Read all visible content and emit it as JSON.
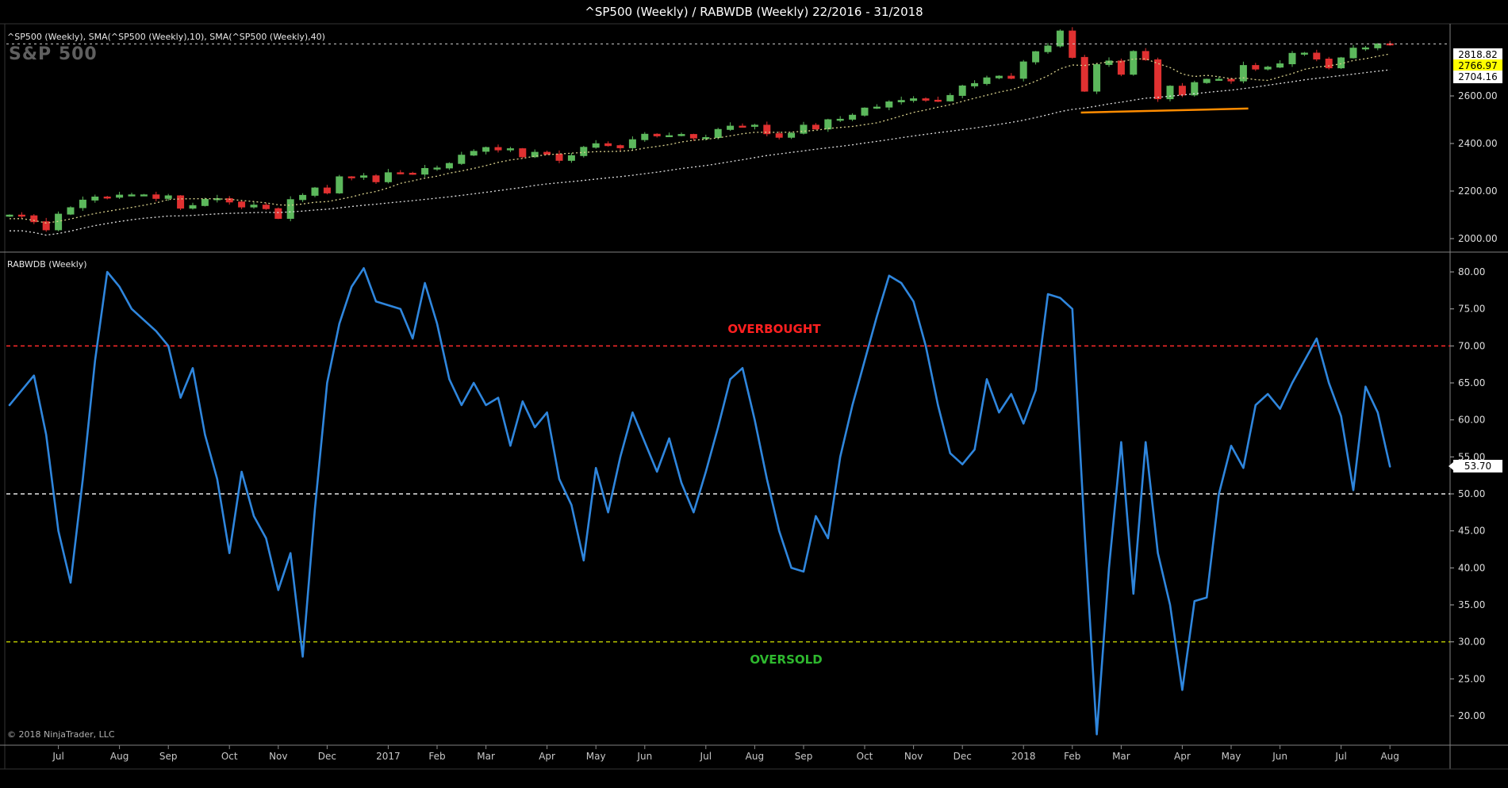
{
  "title": "^SP500 (Weekly) / RABWDB (Weekly)  22/2016 - 31/2018",
  "price_panel": {
    "label": "^SP500 (Weekly), SMA(^SP500 (Weekly),10), SMA(^SP500 (Weekly),40)",
    "watermark": "S&P 500"
  },
  "indicator_panel": {
    "label": "RABWDB (Weekly)",
    "overbought_text": "OVERBOUGHT",
    "oversold_text": "OVERSOLD"
  },
  "markers": {
    "last": "2818.82",
    "sma10": "2766.97",
    "sma40": "2704.16",
    "osc": "53.70"
  },
  "footer": {
    "copyright": "© 2018 NinjaTrader, LLC"
  },
  "x_axis": {
    "labels": [
      {
        "t": "Jul",
        "i": 4
      },
      {
        "t": "Aug",
        "i": 9
      },
      {
        "t": "Sep",
        "i": 13
      },
      {
        "t": "Oct",
        "i": 18
      },
      {
        "t": "Nov",
        "i": 22
      },
      {
        "t": "Dec",
        "i": 26
      },
      {
        "t": "2017",
        "i": 31
      },
      {
        "t": "Feb",
        "i": 35
      },
      {
        "t": "Mar",
        "i": 39
      },
      {
        "t": "Apr",
        "i": 44
      },
      {
        "t": "May",
        "i": 48
      },
      {
        "t": "Jun",
        "i": 52
      },
      {
        "t": "Jul",
        "i": 57
      },
      {
        "t": "Aug",
        "i": 61
      },
      {
        "t": "Sep",
        "i": 65
      },
      {
        "t": "Oct",
        "i": 70
      },
      {
        "t": "Nov",
        "i": 74
      },
      {
        "t": "Dec",
        "i": 78
      },
      {
        "t": "2018",
        "i": 83
      },
      {
        "t": "Feb",
        "i": 87
      },
      {
        "t": "Mar",
        "i": 91
      },
      {
        "t": "Apr",
        "i": 96
      },
      {
        "t": "May",
        "i": 100
      },
      {
        "t": "Jun",
        "i": 104
      },
      {
        "t": "Jul",
        "i": 109
      },
      {
        "t": "Aug",
        "i": 113
      }
    ]
  },
  "chart_data": [
    {
      "type": "candlestick",
      "name": "^SP500 (Weekly)",
      "range_label": "22/2016 - 31/2018",
      "ylim": [
        1960,
        2890
      ],
      "first_open": 2094,
      "closes": [
        2099,
        2096,
        2071,
        2037,
        2103,
        2130,
        2162,
        2175,
        2174,
        2183,
        2184,
        2184,
        2169,
        2180,
        2128,
        2139,
        2165,
        2168,
        2154,
        2133,
        2141,
        2126,
        2085,
        2164,
        2182,
        2213,
        2192,
        2260,
        2258,
        2264,
        2239,
        2277,
        2275,
        2271,
        2295,
        2297,
        2316,
        2351,
        2367,
        2383,
        2373,
        2378,
        2344,
        2363,
        2355,
        2329,
        2349,
        2384,
        2399,
        2391,
        2382,
        2416,
        2439,
        2432,
        2433,
        2438,
        2423,
        2425,
        2459,
        2473,
        2472,
        2477,
        2441,
        2426,
        2443,
        2477,
        2461,
        2500,
        2502,
        2519,
        2549,
        2553,
        2575,
        2581,
        2588,
        2582,
        2579,
        2602,
        2642,
        2652,
        2676,
        2683,
        2674,
        2743,
        2786,
        2810,
        2873,
        2762,
        2620,
        2732,
        2747,
        2691,
        2787,
        2752,
        2588,
        2641,
        2604,
        2656,
        2670,
        2670,
        2663,
        2728,
        2713,
        2721,
        2735,
        2779,
        2780,
        2755,
        2718,
        2760,
        2801,
        2802,
        2819,
        2818.82
      ],
      "sma_periods": [
        10,
        40
      ],
      "axis_ticks": [
        {
          "t": "2600.00",
          "v": 2600
        },
        {
          "t": "2400.00",
          "v": 2400
        },
        {
          "t": "2200.00",
          "v": 2200
        },
        {
          "t": "2000.00",
          "v": 2000
        }
      ],
      "price_line": 2818.82,
      "trendline": {
        "i1": 87.7,
        "v1": 2530,
        "i2": 101.4,
        "v2": 2547
      },
      "up_color": "#5cb85c",
      "down_color": "#e03131",
      "sma10_color": "#d8d08c",
      "sma40_color": "#e0e0e0",
      "trendline_color": "#ff8c00"
    },
    {
      "type": "line",
      "name": "RABWDB (Weekly)",
      "ylim": [
        16,
        82.4
      ],
      "values": [
        62,
        64,
        66,
        58,
        45,
        38,
        52,
        68,
        80,
        78,
        75,
        73.5,
        72,
        70,
        63,
        67,
        58,
        52,
        42,
        53,
        47,
        44,
        37,
        42,
        28,
        48,
        65,
        73,
        78,
        80.5,
        76,
        75.5,
        75,
        71,
        78.5,
        73,
        65.5,
        62,
        65,
        62,
        63,
        56.5,
        62.5,
        59,
        61,
        52,
        48.5,
        41,
        53.5,
        47.5,
        55,
        61,
        57,
        53,
        57.5,
        51.5,
        47.5,
        53,
        59,
        65.5,
        67,
        60,
        52,
        45,
        40,
        39.5,
        47,
        44,
        55,
        62,
        68,
        74,
        79.5,
        78.5,
        76,
        70,
        62,
        55.5,
        54,
        56,
        65.5,
        61,
        63.5,
        59.5,
        64,
        77,
        76.5,
        75,
        45,
        17.5,
        40,
        57,
        36.5,
        57,
        42,
        35,
        23.5,
        35.5,
        36,
        50,
        56.5,
        53.5,
        62,
        63.5,
        61.5,
        65,
        68,
        71,
        65,
        60.5,
        50.5,
        64.5,
        61,
        53.7
      ],
      "last_value": 53.7,
      "levels": {
        "overbought": 70,
        "mid": 50,
        "oversold": 30
      },
      "axis_ticks": [
        {
          "t": "80.00",
          "v": 80
        },
        {
          "t": "75.00",
          "v": 75
        },
        {
          "t": "70.00",
          "v": 70
        },
        {
          "t": "65.00",
          "v": 65
        },
        {
          "t": "60.00",
          "v": 60
        },
        {
          "t": "55.00",
          "v": 55
        },
        {
          "t": "50.00",
          "v": 50
        },
        {
          "t": "45.00",
          "v": 45
        },
        {
          "t": "40.00",
          "v": 40
        },
        {
          "t": "35.00",
          "v": 35
        },
        {
          "t": "30.00",
          "v": 30
        },
        {
          "t": "25.00",
          "v": 25
        },
        {
          "t": "20.00",
          "v": 20
        }
      ],
      "line_color": "#2f86dd",
      "overbought_color": "#ff2a2a",
      "mid_color": "#e8e8e8",
      "oversold_color": "#bac800"
    }
  ]
}
